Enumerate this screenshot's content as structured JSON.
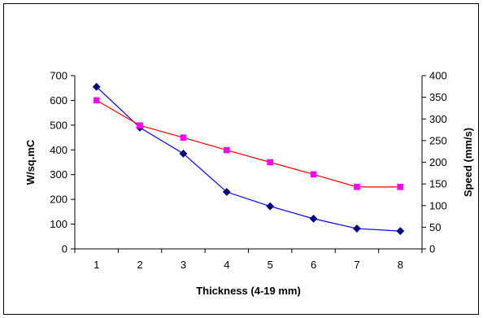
{
  "chart_data": {
    "type": "line",
    "title": "",
    "xlabel": "Thickness (4-19 mm)",
    "ylabel_left": "W/sq.mC",
    "ylabel_right": "Speed (mm/s)",
    "x": [
      1,
      2,
      3,
      4,
      5,
      6,
      7,
      8
    ],
    "ylim_left": [
      0,
      700
    ],
    "yticks_left": [
      0,
      100,
      200,
      300,
      400,
      500,
      600,
      700
    ],
    "ylim_right": [
      0,
      400
    ],
    "yticks_right": [
      0,
      50,
      100,
      150,
      200,
      250,
      300,
      350,
      400
    ],
    "grid": false,
    "legend": "none",
    "series": [
      {
        "axis": "left",
        "color": "#000080",
        "line_color": "#0000ff",
        "marker": "diamond",
        "values": [
          655,
          490,
          385,
          230,
          172,
          122,
          82,
          72
        ]
      },
      {
        "axis": "right",
        "color": "#ff00ff",
        "line_color": "#ff0000",
        "marker": "square",
        "values": [
          343,
          285,
          257,
          228,
          200,
          172,
          143,
          143
        ]
      }
    ]
  }
}
